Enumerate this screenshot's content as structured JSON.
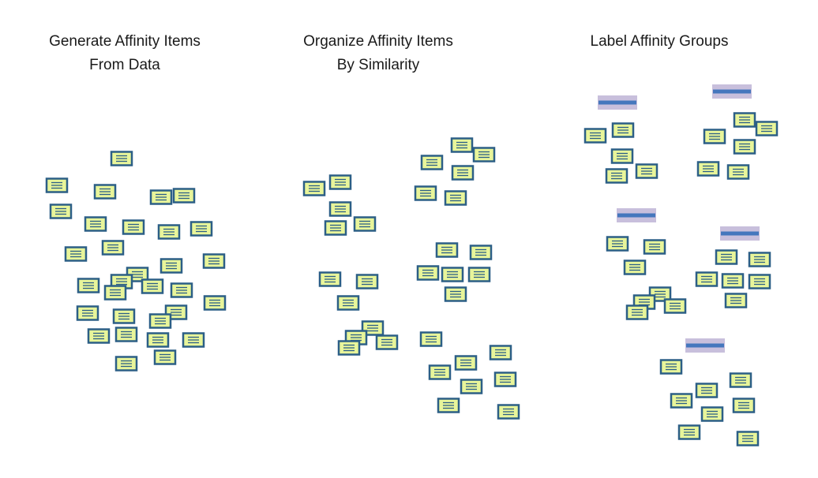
{
  "panels": [
    {
      "id": "generate",
      "title_lines": [
        "Generate Affinity Items",
        "From Data"
      ]
    },
    {
      "id": "organize",
      "title_lines": [
        "Organize Affinity Items",
        "By Similarity"
      ]
    },
    {
      "id": "label",
      "title_lines": [
        "Label Affinity Groups"
      ]
    }
  ],
  "colors": {
    "note_fill": "#e8f59a",
    "note_border": "#2c5f86",
    "group_label_background": "#c8bfdc",
    "group_label_bar": "#4577bd"
  },
  "icons": [
    "affinity-note-icon",
    "group-label-icon"
  ]
}
